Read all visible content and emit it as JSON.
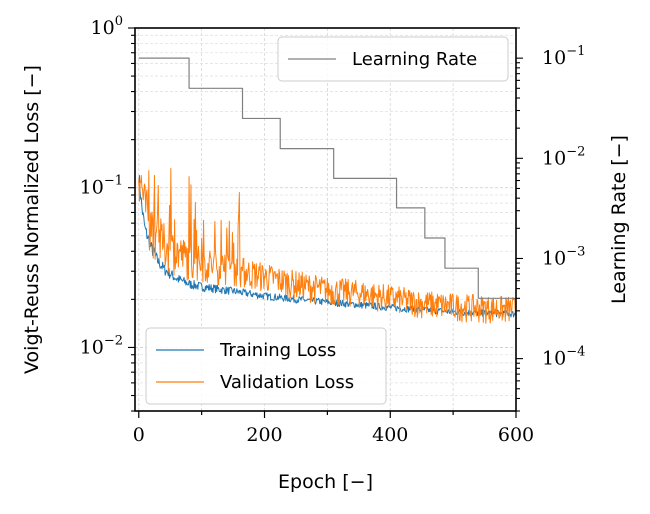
{
  "chart_data": {
    "type": "line",
    "xlabel": "Epoch [−]",
    "ylabel_left": "Voigt-Reuss Normalized Loss [−]",
    "ylabel_right": "Learning Rate [−]",
    "xlim": [
      -6,
      600
    ],
    "ylim_left": [
      0.004,
      1.0
    ],
    "ylim_right": [
      3e-05,
      0.2
    ],
    "yscale": "log",
    "x_ticks": [
      "0",
      "200",
      "400",
      "600"
    ],
    "y_left_ticks": [
      {
        "base": "10",
        "exp": "0"
      },
      {
        "base": "10",
        "exp": "−1"
      },
      {
        "base": "10",
        "exp": "−2"
      }
    ],
    "y_right_ticks": [
      {
        "base": "10",
        "exp": "−1"
      },
      {
        "base": "10",
        "exp": "−2"
      },
      {
        "base": "10",
        "exp": "−3"
      },
      {
        "base": "10",
        "exp": "−4"
      }
    ],
    "grid": true,
    "legend_left": {
      "placement": "bottom-left",
      "entries": [
        "Training Loss",
        "Validation Loss"
      ]
    },
    "legend_right": {
      "placement": "top-right",
      "entries": [
        "Learning Rate"
      ]
    },
    "series": [
      {
        "name": "Training Loss",
        "axis": "left",
        "color": "#1f77b4",
        "anchors": [
          [
            0,
            0.12
          ],
          [
            5,
            0.075
          ],
          [
            10,
            0.055
          ],
          [
            20,
            0.042
          ],
          [
            30,
            0.035
          ],
          [
            40,
            0.031
          ],
          [
            60,
            0.027
          ],
          [
            80,
            0.025
          ],
          [
            100,
            0.024
          ],
          [
            150,
            0.0225
          ],
          [
            200,
            0.021
          ],
          [
            250,
            0.02
          ],
          [
            300,
            0.0192
          ],
          [
            350,
            0.0185
          ],
          [
            400,
            0.0178
          ],
          [
            450,
            0.0172
          ],
          [
            500,
            0.0167
          ],
          [
            550,
            0.0164
          ],
          [
            600,
            0.0162
          ]
        ],
        "noise": 0.05
      },
      {
        "name": "Validation Loss",
        "axis": "left",
        "color": "#ff7f0e",
        "anchors": [
          [
            0,
            0.14
          ],
          [
            5,
            0.1
          ],
          [
            10,
            0.075
          ],
          [
            20,
            0.06
          ],
          [
            30,
            0.05
          ],
          [
            40,
            0.045
          ],
          [
            60,
            0.04
          ],
          [
            80,
            0.036
          ],
          [
            100,
            0.034
          ],
          [
            150,
            0.031
          ],
          [
            200,
            0.028
          ],
          [
            250,
            0.025
          ],
          [
            300,
            0.023
          ],
          [
            350,
            0.022
          ],
          [
            400,
            0.0205
          ],
          [
            450,
            0.019
          ],
          [
            500,
            0.0182
          ],
          [
            550,
            0.0177
          ],
          [
            600,
            0.0174
          ]
        ],
        "noise": 0.2
      },
      {
        "name": "Learning Rate",
        "axis": "right",
        "color": "#808080",
        "type": "step",
        "steps": [
          [
            0,
            0.1
          ],
          [
            80,
            0.05
          ],
          [
            165,
            0.025
          ],
          [
            225,
            0.0125
          ],
          [
            310,
            0.0063
          ],
          [
            410,
            0.0032
          ],
          [
            455,
            0.0016
          ],
          [
            487,
            0.0008
          ],
          [
            540,
            0.0004
          ],
          [
            600,
            0.0004
          ]
        ]
      }
    ]
  }
}
